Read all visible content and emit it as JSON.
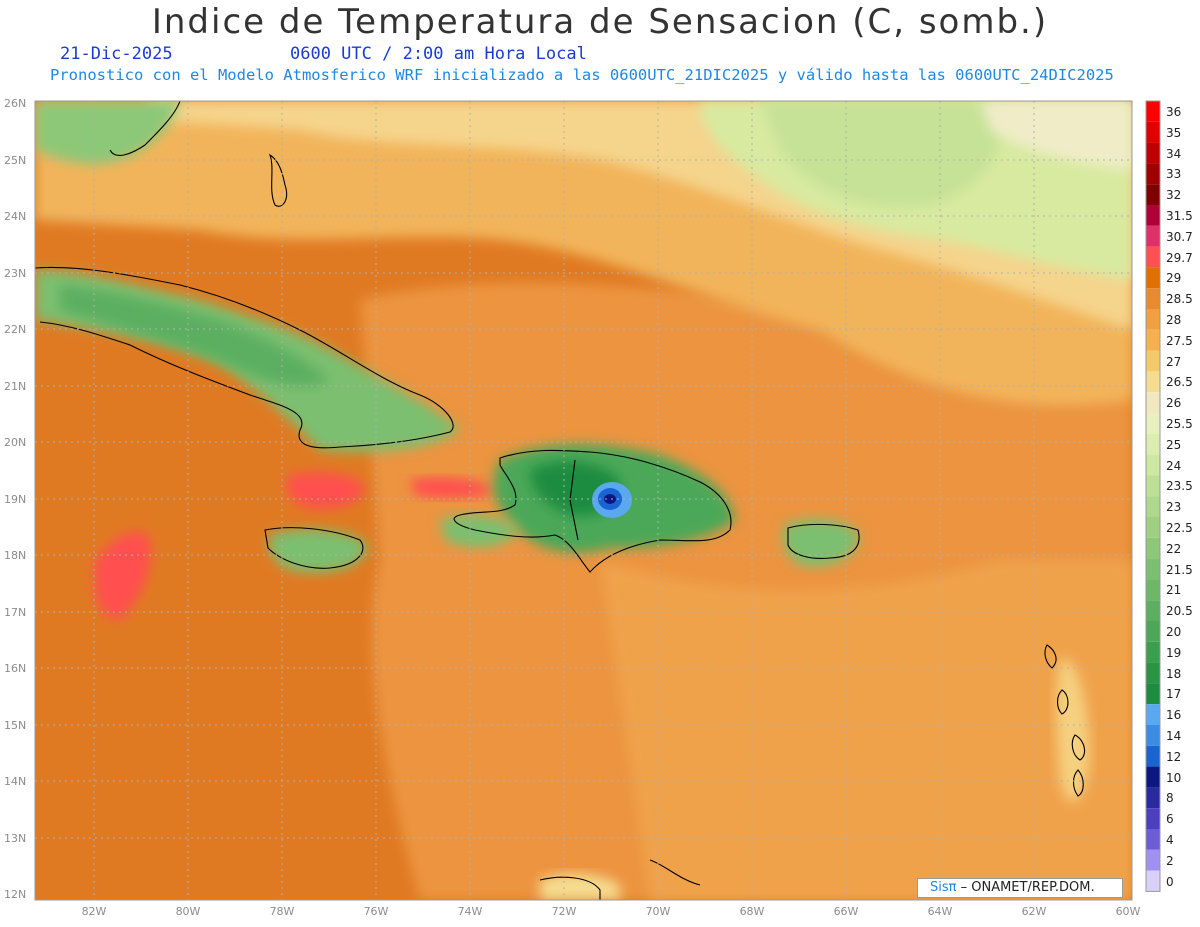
{
  "header": {
    "title": "Indice de Temperatura de Sensacion (C, somb.)",
    "date": "21-Dic-2025",
    "time": "0600 UTC / 2:00 am Hora Local",
    "model_note": "Pronostico con el Modelo Atmosferico WRF inicializado a las 0600UTC_21DIC2025 y válido hasta las  0600UTC_24DIC2025"
  },
  "axes": {
    "lat_ticks": [
      "26N",
      "25N",
      "24N",
      "23N",
      "22N",
      "21N",
      "20N",
      "19N",
      "18N",
      "17N",
      "16N",
      "15N",
      "14N",
      "13N",
      "12N"
    ],
    "lon_ticks": [
      "82W",
      "80W",
      "78W",
      "76W",
      "74W",
      "72W",
      "70W",
      "68W",
      "66W",
      "64W",
      "62W",
      "60W"
    ]
  },
  "colorbar": {
    "labels": [
      "36",
      "35",
      "34",
      "33",
      "32",
      "31.5",
      "30.7",
      "29.7",
      "29",
      "28.5",
      "28",
      "27.5",
      "27",
      "26.5",
      "26",
      "25.5",
      "25",
      "24",
      "23.5",
      "23",
      "22.5",
      "22",
      "21.5",
      "21",
      "20.5",
      "20",
      "19",
      "18",
      "17",
      "16",
      "14",
      "12",
      "10",
      "8",
      "6",
      "4",
      "2",
      "0"
    ],
    "colors": [
      "#ff0000",
      "#e00000",
      "#c00000",
      "#a00000",
      "#800000",
      "#b0003a",
      "#e0306a",
      "#ff5050",
      "#e07000",
      "#e88a30",
      "#f0a040",
      "#f5b050",
      "#f5c868",
      "#f5dc90",
      "#f0e8c0",
      "#e8f0c0",
      "#dcedb0",
      "#cde8a0",
      "#bde094",
      "#aed88a",
      "#9ed080",
      "#8cc878",
      "#7cbf70",
      "#6cb868",
      "#5caf60",
      "#4ca858",
      "#3a9e4c",
      "#2a9444",
      "#1e8c40",
      "#5aa8f0",
      "#3c8ce6",
      "#1a64d2",
      "#0c1880",
      "#2a2aa0",
      "#4c40c0",
      "#6c5cd8",
      "#a090f0",
      "#d8d0f8"
    ]
  },
  "credit": {
    "brand": "Sisπ",
    "text": "– ONAMET/REP.DOM."
  },
  "map_colors": {
    "background": "#e08030",
    "warm_red": "#ff5050",
    "land_green": "#7cbf70",
    "yellow_band": "#f5d080",
    "cool_blue": "#3c8ce6",
    "coast": "#000000",
    "grid": "#b0b0b0"
  }
}
